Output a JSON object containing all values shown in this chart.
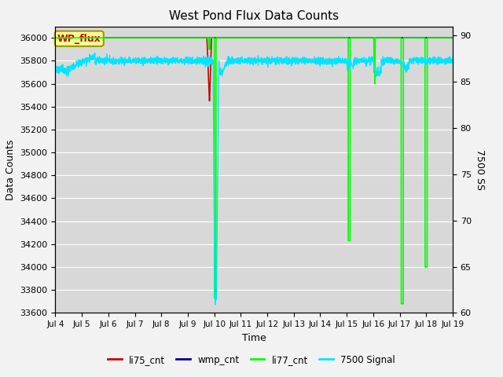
{
  "title": "West Pond Flux Data Counts",
  "xlabel": "Time",
  "ylabel_left": "Data Counts",
  "ylabel_right": "7500 SS",
  "ylim_left": [
    33600,
    36100
  ],
  "ylim_right": [
    60,
    91
  ],
  "xtick_labels": [
    "Jul 4",
    "Jul 5",
    "Jul 6",
    "Jul 7",
    "Jul 8",
    "Jul 9",
    "Jul 10",
    "Jul 11",
    "Jul 12",
    "Jul 13",
    "Jul 14",
    "Jul 15",
    "Jul 16",
    "Jul 17",
    "Jul 18",
    "Jul 19"
  ],
  "annotation_box_text": "WP_flux",
  "bg_color": "#d8d8d8",
  "grid_color": "#ffffff",
  "li77_color": "#00ff00",
  "li75_color": "#cc0000",
  "wmp_color": "#00008b",
  "signal7500_color": "#00e5ff",
  "yticks_left": [
    33600,
    33800,
    34000,
    34200,
    34400,
    34600,
    34800,
    35000,
    35200,
    35400,
    35600,
    35800,
    36000
  ],
  "yticks_right": [
    60,
    65,
    70,
    75,
    80,
    85,
    90
  ]
}
